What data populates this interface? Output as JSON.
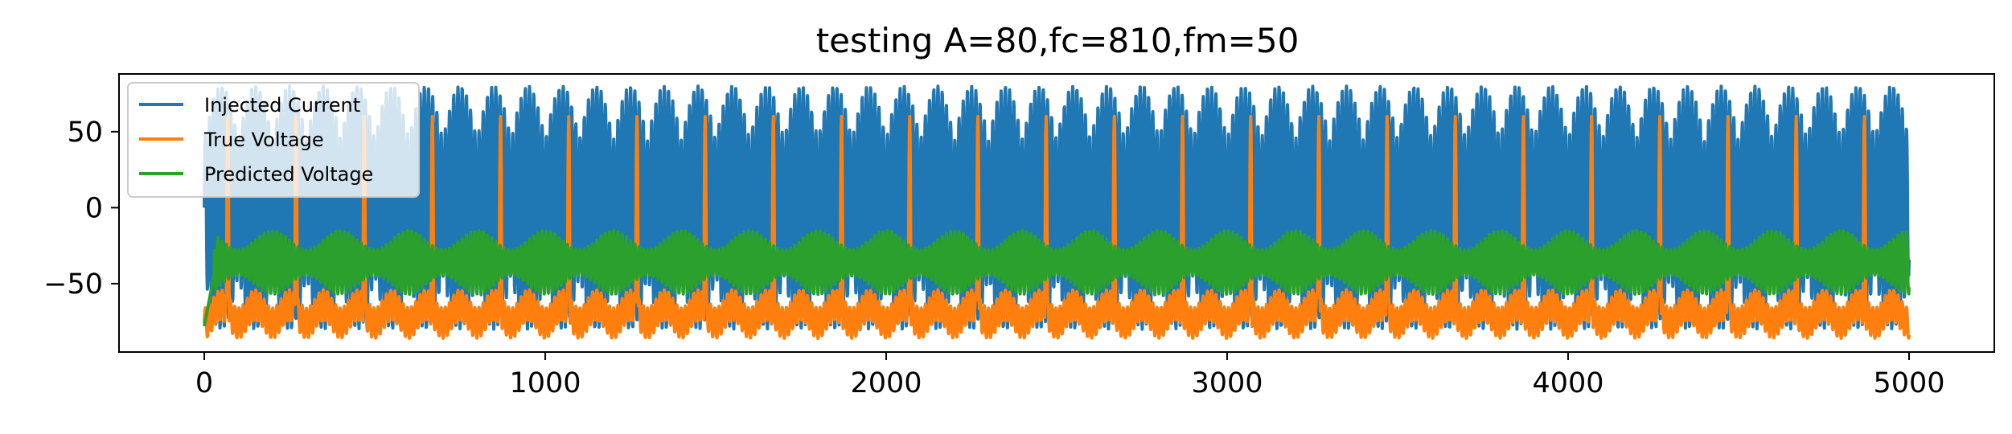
{
  "chart_data": {
    "type": "line",
    "title": "testing A=80,fc=810,fm=50",
    "xlabel": "",
    "ylabel": "",
    "xlim": [
      -250,
      5250
    ],
    "ylim": [
      -95,
      88
    ],
    "xticks": [
      0,
      1000,
      2000,
      3000,
      4000,
      5000
    ],
    "xtick_labels": [
      "0",
      "1000",
      "2000",
      "3000",
      "4000",
      "5000"
    ],
    "yticks": [
      -50,
      0,
      50
    ],
    "ytick_labels": [
      "−50",
      "0",
      "50"
    ],
    "grid": false,
    "legend_position": "upper-left",
    "num_samples": 5000,
    "series": [
      {
        "name": "Injected Current",
        "color": "#1f77b4",
        "description_values": {
          "amplitude": 80,
          "carrier_period_samples": 12.35,
          "envelope_period_samples": 200,
          "min": -80,
          "max": 80
        }
      },
      {
        "name": "True Voltage",
        "color": "#ff7f0e",
        "description_values": {
          "baseline_low": -80,
          "baseline_high": -60,
          "spike_peak": 60,
          "spike_period_samples": 200,
          "spike_offset_samples": 65
        }
      },
      {
        "name": "Predicted Voltage",
        "color": "#2ca02c",
        "description_values": {
          "low": -57,
          "high": -15,
          "start_value": -78,
          "period_samples": 200
        }
      }
    ]
  }
}
